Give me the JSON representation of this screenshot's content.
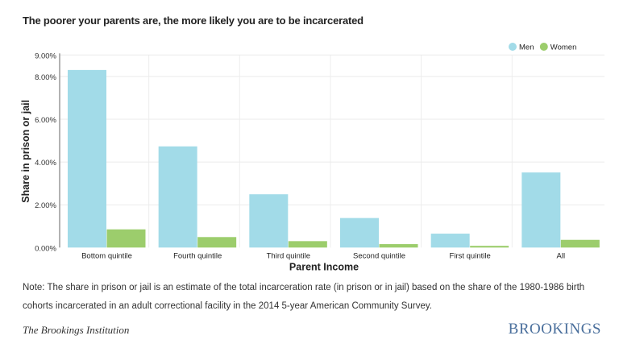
{
  "chart_data": {
    "type": "bar",
    "title": "The poorer your parents are, the more likely you are to be incarcerated",
    "xlabel": "Parent Income",
    "ylabel": "Share in prison or jail",
    "ylim": [
      0,
      9
    ],
    "yticks": [
      0,
      2,
      4,
      6,
      8,
      9
    ],
    "ytick_labels": [
      "0.00%",
      "2.00%",
      "4.00%",
      "6.00%",
      "8.00%",
      "9.00%"
    ],
    "categories": [
      "Bottom quintile",
      "Fourth quintile",
      "Third quintile",
      "Second quintile",
      "First quintile",
      "All"
    ],
    "series": [
      {
        "name": "Men",
        "color": "#a2dbe8",
        "values": [
          8.3,
          4.73,
          2.49,
          1.38,
          0.65,
          3.51
        ]
      },
      {
        "name": "Women",
        "color": "#9ccd6c",
        "values": [
          0.85,
          0.49,
          0.3,
          0.16,
          0.08,
          0.36
        ]
      }
    ],
    "grid": true,
    "legend": "top-right"
  },
  "note": "Note: The share in prison or jail is an estimate of the total incarceration rate (in prison or in jail) based on the share of the 1980-1986 birth cohorts incarcerated in an adult correctional facility in the 2014 5-year American Community Survey.",
  "source": "The Brookings Institution",
  "logo": "BROOKINGS"
}
